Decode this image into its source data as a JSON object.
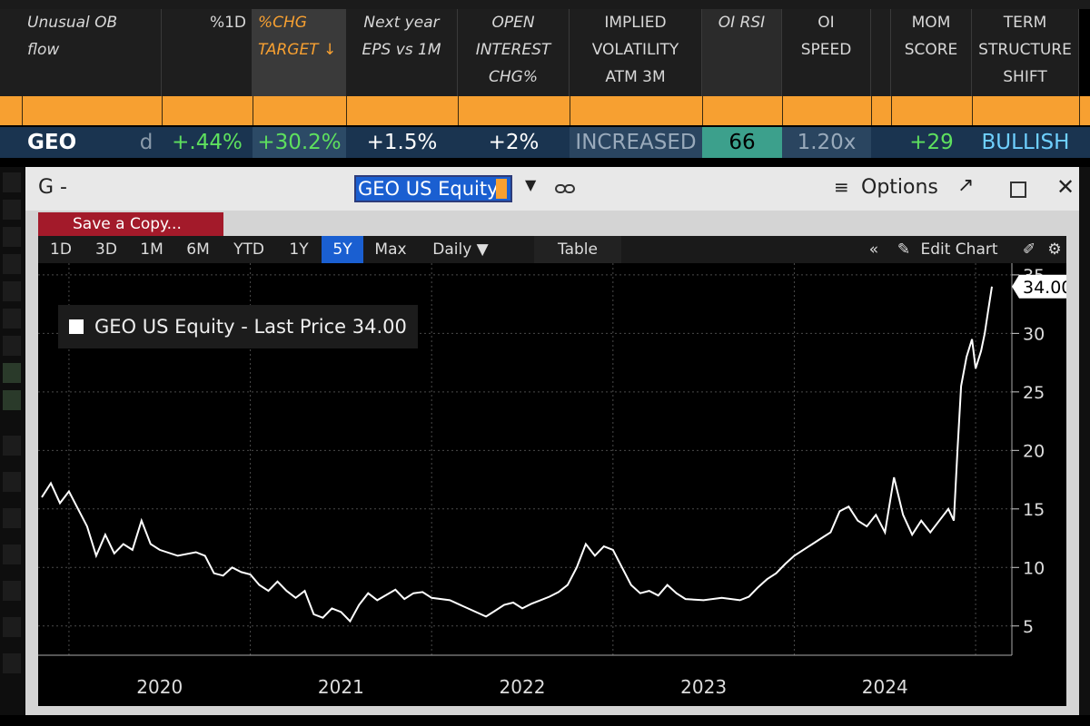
{
  "table": {
    "headers": [
      {
        "lines": [
          "Unusual OB",
          "flow"
        ]
      },
      {
        "lines": [
          "%1D"
        ]
      },
      {
        "lines": [
          "%CHG",
          "TARGET ↓"
        ]
      },
      {
        "lines": [
          "Next year",
          "EPS vs 1M"
        ]
      },
      {
        "lines": [
          "OPEN",
          "INTEREST",
          "CHG%"
        ]
      },
      {
        "lines": [
          "IMPLIED",
          "VOLATILITY",
          "ATM 3M"
        ]
      },
      {
        "lines": [
          "OI RSI"
        ]
      },
      {
        "lines": [
          "OI",
          "SPEED"
        ]
      },
      {
        "lines": [
          "MOM",
          "SCORE"
        ]
      },
      {
        "lines": [
          "TERM",
          "STRUCTURE",
          "SHIFT"
        ]
      }
    ],
    "row": {
      "ticker": "GEO",
      "flag": "d",
      "pct_1d": "+.44%",
      "chg_target": "+30.2%",
      "eps_vs_1m": "+1.5%",
      "oi_chg": "+2%",
      "iv": "INCREASED",
      "oi_rsi": "66",
      "oi_speed": "1.20x",
      "mom_score": "+29",
      "term_shift": "BULLISH"
    },
    "colors": {
      "header_bg": "#1e1e1e",
      "orange": "#f7a031",
      "row_bg": "#1a3450",
      "green": "#5ee05e",
      "teal": "#3ca08c",
      "cyan": "#6fd0ff"
    }
  },
  "window": {
    "title": "G  -",
    "ticker": "GEO US Equity",
    "options_label": "Options",
    "icons": [
      "link-icon",
      "hamburger-icon",
      "popout-icon",
      "maximize-icon",
      "close-icon"
    ]
  },
  "save_copy": "Save a Copy...",
  "toolbar": {
    "periods": [
      "1D",
      "3D",
      "1M",
      "6M",
      "YTD",
      "1Y",
      "5Y",
      "Max"
    ],
    "active": "5Y",
    "frequency": "Daily ▼",
    "table": "Table",
    "edit_chart": "Edit Chart"
  },
  "legend": {
    "label": "GEO US Equity - Last Price 34.00"
  },
  "chart_data": {
    "type": "line",
    "series": [
      {
        "name": "GEO US Equity - Last Price",
        "points": [
          [
            2019.85,
            16.0
          ],
          [
            2019.9,
            17.2
          ],
          [
            2019.95,
            15.5
          ],
          [
            2020.0,
            16.5
          ],
          [
            2020.05,
            15.0
          ],
          [
            2020.1,
            13.5
          ],
          [
            2020.15,
            11.0
          ],
          [
            2020.2,
            12.8
          ],
          [
            2020.25,
            11.2
          ],
          [
            2020.3,
            12.0
          ],
          [
            2020.35,
            11.5
          ],
          [
            2020.4,
            14.0
          ],
          [
            2020.45,
            12.0
          ],
          [
            2020.5,
            11.5
          ],
          [
            2020.6,
            11.0
          ],
          [
            2020.7,
            11.3
          ],
          [
            2020.75,
            11.0
          ],
          [
            2020.8,
            9.5
          ],
          [
            2020.85,
            9.3
          ],
          [
            2020.9,
            10.0
          ],
          [
            2020.95,
            9.6
          ],
          [
            2021.0,
            9.4
          ],
          [
            2021.05,
            8.5
          ],
          [
            2021.1,
            8.0
          ],
          [
            2021.15,
            8.8
          ],
          [
            2021.2,
            8.0
          ],
          [
            2021.25,
            7.4
          ],
          [
            2021.3,
            8.0
          ],
          [
            2021.35,
            6.0
          ],
          [
            2021.4,
            5.7
          ],
          [
            2021.45,
            6.5
          ],
          [
            2021.5,
            6.2
          ],
          [
            2021.55,
            5.4
          ],
          [
            2021.6,
            6.8
          ],
          [
            2021.65,
            7.8
          ],
          [
            2021.7,
            7.2
          ],
          [
            2021.8,
            8.1
          ],
          [
            2021.85,
            7.3
          ],
          [
            2021.9,
            7.8
          ],
          [
            2021.95,
            7.9
          ],
          [
            2022.0,
            7.4
          ],
          [
            2022.1,
            7.2
          ],
          [
            2022.2,
            6.5
          ],
          [
            2022.3,
            5.8
          ],
          [
            2022.35,
            6.3
          ],
          [
            2022.4,
            6.8
          ],
          [
            2022.45,
            7.0
          ],
          [
            2022.5,
            6.5
          ],
          [
            2022.55,
            6.9
          ],
          [
            2022.6,
            7.2
          ],
          [
            2022.65,
            7.5
          ],
          [
            2022.7,
            7.9
          ],
          [
            2022.75,
            8.5
          ],
          [
            2022.8,
            10.0
          ],
          [
            2022.85,
            12.0
          ],
          [
            2022.9,
            11.0
          ],
          [
            2022.95,
            11.8
          ],
          [
            2023.0,
            11.5
          ],
          [
            2023.05,
            10.0
          ],
          [
            2023.1,
            8.5
          ],
          [
            2023.15,
            7.8
          ],
          [
            2023.2,
            8.0
          ],
          [
            2023.25,
            7.6
          ],
          [
            2023.3,
            8.5
          ],
          [
            2023.35,
            7.8
          ],
          [
            2023.4,
            7.3
          ],
          [
            2023.5,
            7.2
          ],
          [
            2023.6,
            7.4
          ],
          [
            2023.7,
            7.2
          ],
          [
            2023.75,
            7.5
          ],
          [
            2023.8,
            8.3
          ],
          [
            2023.85,
            9.0
          ],
          [
            2023.9,
            9.5
          ],
          [
            2023.95,
            10.3
          ],
          [
            2024.0,
            11.0
          ],
          [
            2024.1,
            12.0
          ],
          [
            2024.15,
            12.5
          ],
          [
            2024.2,
            13.0
          ],
          [
            2024.25,
            14.8
          ],
          [
            2024.3,
            15.2
          ],
          [
            2024.35,
            14.0
          ],
          [
            2024.4,
            13.5
          ],
          [
            2024.45,
            14.5
          ],
          [
            2024.5,
            13.0
          ],
          [
            2024.55,
            17.7
          ],
          [
            2024.6,
            14.5
          ],
          [
            2024.65,
            12.8
          ],
          [
            2024.7,
            14.0
          ],
          [
            2024.75,
            13.0
          ],
          [
            2024.8,
            14.0
          ],
          [
            2024.85,
            15.0
          ],
          [
            2024.88,
            14.0
          ],
          [
            2024.9,
            20.0
          ],
          [
            2024.92,
            25.5
          ],
          [
            2024.95,
            28.0
          ],
          [
            2024.98,
            29.5
          ],
          [
            2025.0,
            27.0
          ],
          [
            2025.03,
            28.5
          ],
          [
            2025.05,
            30.0
          ],
          [
            2025.07,
            32.0
          ],
          [
            2025.09,
            34.0
          ]
        ]
      }
    ],
    "x_labels": [
      "2020",
      "2021",
      "2022",
      "2023",
      "2024"
    ],
    "x_range": [
      2019.83,
      2025.2
    ],
    "y_ticks": [
      5,
      10,
      15,
      20,
      25,
      30,
      35
    ],
    "y_range": [
      2.5,
      36
    ],
    "last_value": "34.00",
    "grid": true,
    "y_axis_side": "right",
    "colors": {
      "line": "#ffffff",
      "background": "#000000",
      "grid": "#4a4a4a"
    }
  }
}
